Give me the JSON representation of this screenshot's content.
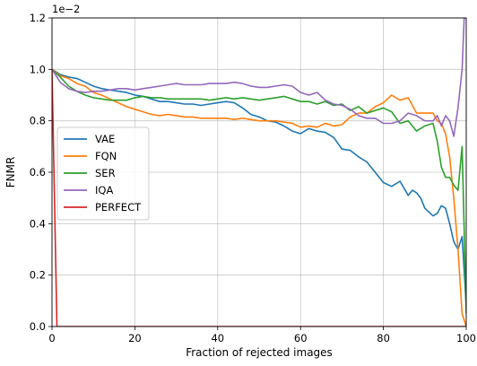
{
  "chart_data": {
    "type": "line",
    "xlabel": "Fraction of rejected images",
    "ylabel": "FNMR",
    "y_scale_label": "1e−2",
    "xlim": [
      0,
      100
    ],
    "ylim": [
      0,
      1.2
    ],
    "x_ticks": [
      0,
      20,
      40,
      60,
      80,
      100
    ],
    "y_ticks": [
      0.0,
      0.2,
      0.4,
      0.6,
      0.8,
      1.0,
      1.2
    ],
    "x_tick_labels": [
      "0",
      "20",
      "40",
      "60",
      "80",
      "100"
    ],
    "y_tick_labels": [
      "0.0",
      "0.2",
      "0.4",
      "0.6",
      "0.8",
      "1.0",
      "1.2"
    ],
    "grid": true,
    "legend_position": "center-left",
    "series": [
      {
        "name": "VAE",
        "color": "#1f77b4",
        "x": [
          0,
          2,
          4,
          6,
          8,
          10,
          12,
          14,
          16,
          18,
          20,
          22,
          24,
          26,
          28,
          30,
          32,
          34,
          36,
          38,
          40,
          42,
          44,
          46,
          48,
          50,
          52,
          54,
          56,
          58,
          60,
          62,
          64,
          66,
          68,
          70,
          72,
          74,
          76,
          78,
          80,
          82,
          84,
          86,
          87,
          88,
          89,
          90,
          91,
          92,
          93,
          94,
          95,
          96,
          97,
          98,
          99,
          100
        ],
        "y": [
          1.0,
          0.98,
          0.97,
          0.965,
          0.95,
          0.935,
          0.925,
          0.92,
          0.915,
          0.91,
          0.9,
          0.895,
          0.885,
          0.875,
          0.875,
          0.87,
          0.865,
          0.865,
          0.86,
          0.865,
          0.87,
          0.875,
          0.87,
          0.85,
          0.825,
          0.815,
          0.8,
          0.795,
          0.78,
          0.76,
          0.75,
          0.77,
          0.76,
          0.755,
          0.735,
          0.69,
          0.685,
          0.66,
          0.64,
          0.6,
          0.56,
          0.545,
          0.565,
          0.51,
          0.53,
          0.52,
          0.5,
          0.46,
          0.445,
          0.43,
          0.44,
          0.47,
          0.46,
          0.4,
          0.33,
          0.3,
          0.35,
          0.08
        ]
      },
      {
        "name": "FQN",
        "color": "#ff7f0e",
        "x": [
          0,
          2,
          4,
          6,
          8,
          10,
          12,
          14,
          16,
          18,
          20,
          22,
          24,
          26,
          28,
          30,
          32,
          34,
          36,
          38,
          40,
          42,
          44,
          46,
          48,
          50,
          52,
          54,
          56,
          58,
          60,
          62,
          64,
          66,
          68,
          70,
          72,
          74,
          76,
          78,
          80,
          82,
          84,
          86,
          88,
          90,
          92,
          93,
          94,
          95,
          96,
          97,
          98,
          99,
          100
        ],
        "y": [
          1.0,
          0.975,
          0.965,
          0.945,
          0.935,
          0.91,
          0.9,
          0.885,
          0.87,
          0.855,
          0.845,
          0.835,
          0.825,
          0.82,
          0.825,
          0.82,
          0.815,
          0.815,
          0.81,
          0.81,
          0.81,
          0.81,
          0.805,
          0.81,
          0.805,
          0.8,
          0.8,
          0.8,
          0.795,
          0.79,
          0.775,
          0.78,
          0.775,
          0.79,
          0.78,
          0.785,
          0.815,
          0.83,
          0.83,
          0.855,
          0.87,
          0.9,
          0.88,
          0.89,
          0.83,
          0.83,
          0.83,
          0.8,
          0.79,
          0.75,
          0.66,
          0.5,
          0.3,
          0.05,
          0.0
        ]
      },
      {
        "name": "SER",
        "color": "#2ca02c",
        "x": [
          0,
          2,
          4,
          6,
          8,
          10,
          12,
          14,
          16,
          18,
          20,
          22,
          24,
          26,
          28,
          30,
          32,
          34,
          36,
          38,
          40,
          42,
          44,
          46,
          48,
          50,
          52,
          54,
          56,
          58,
          60,
          62,
          64,
          66,
          68,
          70,
          72,
          74,
          76,
          78,
          80,
          82,
          84,
          86,
          88,
          90,
          92,
          93,
          94,
          95,
          96,
          97,
          98,
          99,
          100
        ],
        "y": [
          1.0,
          0.97,
          0.935,
          0.915,
          0.9,
          0.89,
          0.885,
          0.88,
          0.88,
          0.88,
          0.89,
          0.895,
          0.89,
          0.89,
          0.885,
          0.885,
          0.885,
          0.885,
          0.885,
          0.88,
          0.885,
          0.89,
          0.885,
          0.89,
          0.885,
          0.88,
          0.885,
          0.89,
          0.895,
          0.885,
          0.875,
          0.875,
          0.865,
          0.875,
          0.86,
          0.865,
          0.84,
          0.855,
          0.83,
          0.84,
          0.85,
          0.835,
          0.79,
          0.8,
          0.76,
          0.78,
          0.79,
          0.72,
          0.62,
          0.58,
          0.58,
          0.55,
          0.53,
          0.7,
          0.05
        ]
      },
      {
        "name": "IQA",
        "color": "#9467bd",
        "x": [
          0,
          2,
          4,
          6,
          8,
          10,
          12,
          14,
          16,
          18,
          20,
          22,
          24,
          26,
          28,
          30,
          32,
          34,
          36,
          38,
          40,
          42,
          44,
          46,
          48,
          50,
          52,
          54,
          56,
          58,
          60,
          62,
          64,
          66,
          68,
          70,
          72,
          74,
          76,
          78,
          80,
          82,
          84,
          86,
          88,
          90,
          92,
          93,
          94,
          95,
          96,
          97,
          98,
          99,
          99.5,
          100
        ],
        "y": [
          1.0,
          0.95,
          0.925,
          0.915,
          0.91,
          0.915,
          0.915,
          0.92,
          0.925,
          0.925,
          0.92,
          0.925,
          0.93,
          0.935,
          0.94,
          0.945,
          0.94,
          0.94,
          0.94,
          0.945,
          0.945,
          0.945,
          0.95,
          0.945,
          0.935,
          0.93,
          0.93,
          0.935,
          0.94,
          0.935,
          0.91,
          0.9,
          0.91,
          0.88,
          0.865,
          0.86,
          0.845,
          0.82,
          0.81,
          0.81,
          0.79,
          0.79,
          0.8,
          0.83,
          0.82,
          0.8,
          0.8,
          0.82,
          0.78,
          0.82,
          0.8,
          0.74,
          0.85,
          1.0,
          1.2,
          1.2
        ]
      },
      {
        "name": "PERFECT",
        "color": "#d62728",
        "x": [
          0,
          1.2,
          100
        ],
        "y": [
          1.0,
          0.0,
          0.0
        ]
      }
    ]
  }
}
